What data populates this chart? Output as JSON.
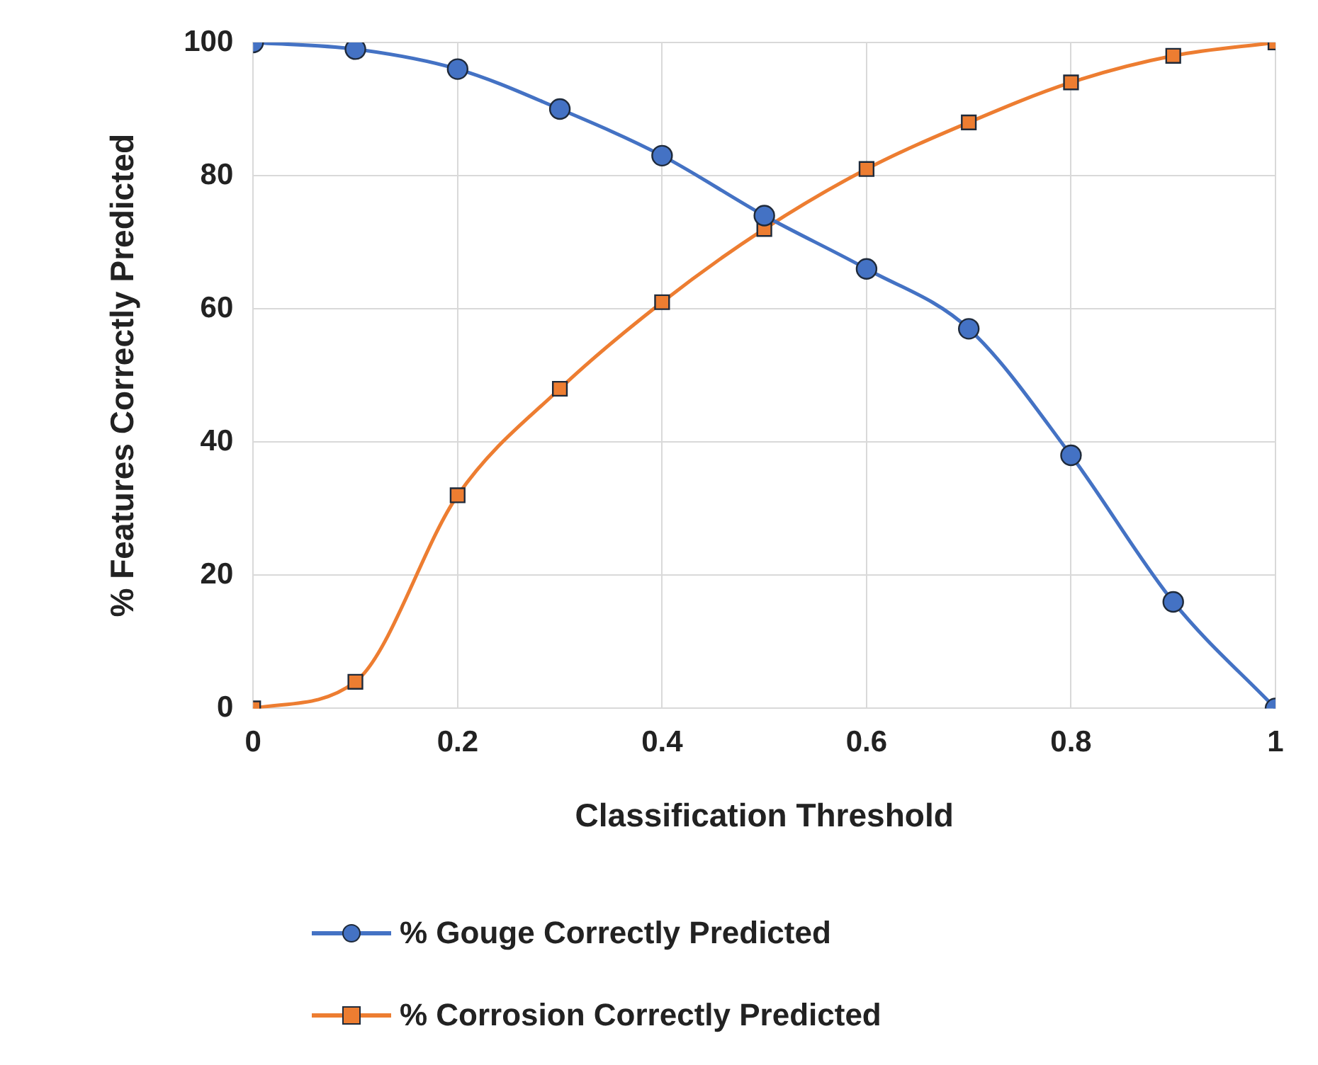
{
  "chart_data": {
    "type": "line",
    "xlabel": "Classification Threshold",
    "ylabel": "% Features Correctly Predicted",
    "x": [
      0,
      0.1,
      0.2,
      0.3,
      0.4,
      0.5,
      0.6,
      0.7,
      0.8,
      0.9,
      1
    ],
    "series": [
      {
        "name": "% Gouge Correctly Predicted",
        "color": "#4472c4",
        "marker": "circle",
        "values": [
          100,
          99,
          96,
          90,
          83,
          74,
          66,
          57,
          38,
          16,
          0
        ]
      },
      {
        "name": "% Corrosion Correctly Predicted",
        "color": "#ed7d31",
        "marker": "square",
        "values": [
          0,
          4,
          32,
          48,
          61,
          72,
          81,
          88,
          94,
          98,
          100
        ]
      }
    ],
    "xlim": [
      0,
      1
    ],
    "xticks": [
      0,
      0.2,
      0.4,
      0.6,
      0.8,
      1
    ],
    "ylim": [
      0,
      100
    ],
    "yticks": [
      0,
      20,
      40,
      60,
      80,
      100
    ],
    "grid": true,
    "legend": "bottom",
    "line_style": "solid"
  }
}
